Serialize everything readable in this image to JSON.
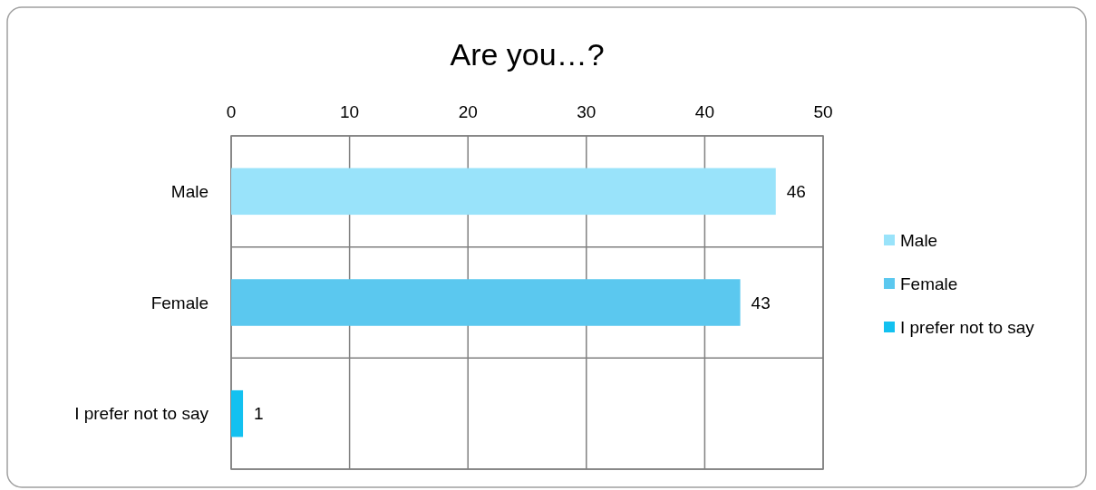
{
  "chart_data": {
    "type": "bar",
    "title": "Are you…?",
    "orientation": "horizontal",
    "stacked": true,
    "categories": [
      "Male",
      "Female",
      "I prefer not to say"
    ],
    "series": [
      {
        "name": "Male",
        "color": "#99e3fa",
        "values": [
          46,
          null,
          null
        ]
      },
      {
        "name": "Female",
        "color": "#5bc8ef",
        "values": [
          null,
          43,
          null
        ]
      },
      {
        "name": "I prefer not to say",
        "color": "#13c1f0",
        "values": [
          null,
          null,
          1
        ]
      }
    ],
    "xlim": [
      0,
      50
    ],
    "xticks": [
      0,
      10,
      20,
      30,
      40,
      50
    ],
    "grid": true,
    "data_labels": true,
    "legend": "right"
  }
}
